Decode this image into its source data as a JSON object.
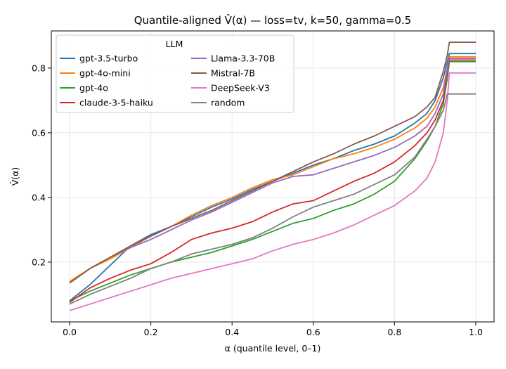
{
  "chart_data": {
    "type": "line",
    "title": "Quantile-aligned V̂(α) — loss=tv, k=50, gamma=0.5",
    "xlabel": "α (quantile level, 0–1)",
    "ylabel": "V̂(α)",
    "xlim": [
      -0.045,
      1.045
    ],
    "ylim": [
      0.015,
      0.915
    ],
    "xticks": [
      0.0,
      0.2,
      0.4,
      0.6,
      0.8,
      1.0
    ],
    "xtick_labels": [
      "0.0",
      "0.2",
      "0.4",
      "0.6",
      "0.8",
      "1.0"
    ],
    "yticks": [
      0.2,
      0.4,
      0.6,
      0.8
    ],
    "ytick_labels": [
      "0.2",
      "0.4",
      "0.6",
      "0.8"
    ],
    "grid": true,
    "legend": {
      "title": "LLM",
      "location": "upper-left",
      "columns": 2
    },
    "x": [
      0.0,
      0.05,
      0.1,
      0.15,
      0.2,
      0.25,
      0.3,
      0.35,
      0.4,
      0.45,
      0.5,
      0.55,
      0.6,
      0.65,
      0.7,
      0.75,
      0.8,
      0.85,
      0.88,
      0.9,
      0.92,
      0.93,
      0.935,
      0.94,
      1.0
    ],
    "series": [
      {
        "name": "gpt-3.5-turbo",
        "color": "#1f77b4",
        "values": [
          0.08,
          0.13,
          0.19,
          0.25,
          0.285,
          0.31,
          0.34,
          0.37,
          0.395,
          0.425,
          0.45,
          0.475,
          0.5,
          0.52,
          0.545,
          0.565,
          0.59,
          0.63,
          0.66,
          0.7,
          0.77,
          0.82,
          0.845,
          0.845,
          0.845
        ]
      },
      {
        "name": "gpt-4o-mini",
        "color": "#ff7f0e",
        "values": [
          0.14,
          0.18,
          0.21,
          0.245,
          0.28,
          0.31,
          0.345,
          0.375,
          0.4,
          0.43,
          0.455,
          0.47,
          0.495,
          0.52,
          0.535,
          0.555,
          0.58,
          0.615,
          0.645,
          0.68,
          0.74,
          0.8,
          0.835,
          0.835,
          0.835
        ]
      },
      {
        "name": "gpt-4o",
        "color": "#2ca02c",
        "values": [
          0.08,
          0.11,
          0.135,
          0.16,
          0.18,
          0.2,
          0.215,
          0.23,
          0.25,
          0.27,
          0.295,
          0.32,
          0.335,
          0.36,
          0.38,
          0.41,
          0.45,
          0.52,
          0.575,
          0.62,
          0.69,
          0.77,
          0.82,
          0.82,
          0.82
        ]
      },
      {
        "name": "claude-3-5-haiku",
        "color": "#d62728",
        "values": [
          0.075,
          0.12,
          0.15,
          0.175,
          0.195,
          0.23,
          0.27,
          0.29,
          0.305,
          0.325,
          0.355,
          0.38,
          0.39,
          0.42,
          0.45,
          0.475,
          0.51,
          0.56,
          0.6,
          0.64,
          0.7,
          0.79,
          0.825,
          0.825,
          0.825
        ]
      },
      {
        "name": "Llama-3.3-70B",
        "color": "#9467bd",
        "values": [
          0.135,
          0.18,
          0.215,
          0.245,
          0.27,
          0.3,
          0.33,
          0.355,
          0.385,
          0.415,
          0.445,
          0.465,
          0.47,
          0.49,
          0.51,
          0.53,
          0.555,
          0.59,
          0.62,
          0.66,
          0.72,
          0.8,
          0.83,
          0.83,
          0.83
        ]
      },
      {
        "name": "Mistral-7B",
        "color": "#8c564b",
        "values": [
          0.135,
          0.18,
          0.215,
          0.25,
          0.28,
          0.31,
          0.335,
          0.36,
          0.39,
          0.42,
          0.45,
          0.48,
          0.51,
          0.535,
          0.565,
          0.59,
          0.62,
          0.65,
          0.68,
          0.71,
          0.79,
          0.84,
          0.88,
          0.88,
          0.88
        ]
      },
      {
        "name": "DeepSeek-V3",
        "color": "#e377c2",
        "values": [
          0.05,
          0.07,
          0.09,
          0.11,
          0.13,
          0.15,
          0.165,
          0.18,
          0.195,
          0.21,
          0.235,
          0.255,
          0.27,
          0.29,
          0.315,
          0.345,
          0.375,
          0.42,
          0.46,
          0.51,
          0.6,
          0.7,
          0.785,
          0.785,
          0.785
        ]
      },
      {
        "name": "random",
        "color": "#7f7f7f",
        "values": [
          0.07,
          0.1,
          0.125,
          0.15,
          0.18,
          0.2,
          0.225,
          0.24,
          0.255,
          0.275,
          0.305,
          0.34,
          0.37,
          0.39,
          0.41,
          0.44,
          0.47,
          0.525,
          0.58,
          0.62,
          0.67,
          0.72,
          0.72,
          0.72,
          0.72
        ]
      }
    ]
  }
}
